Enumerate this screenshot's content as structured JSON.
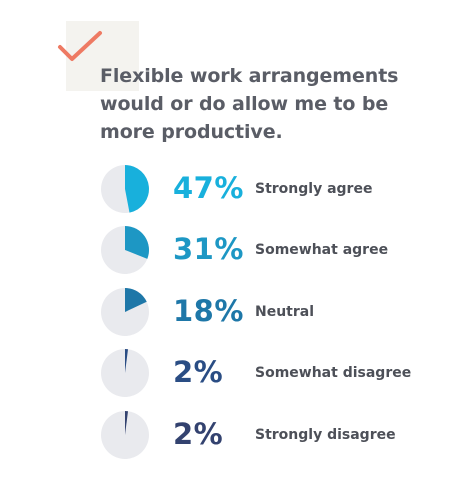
{
  "title": "Flexible work arrangements would or do allow me to be more productive.",
  "icon": "checkmark-icon",
  "colors": {
    "check": "#ee7a63",
    "pie_background": "#e9eaee",
    "title_text": "#5a5d66",
    "label_text": "#4d5058"
  },
  "chart_data": {
    "type": "pie",
    "title": "Flexible work arrangements would or do allow me to be more productive.",
    "unit": "%",
    "categories": [
      "Strongly agree",
      "Somewhat agree",
      "Neutral",
      "Somewhat disagree",
      "Strongly disagree"
    ],
    "values": [
      47,
      31,
      18,
      2,
      2
    ],
    "display_values": [
      "47%",
      "31%",
      "18%",
      "2%",
      "2%"
    ],
    "colors": [
      "#18b0dc",
      "#1d97c4",
      "#1e77a8",
      "#2a4d84",
      "#33426f"
    ]
  }
}
